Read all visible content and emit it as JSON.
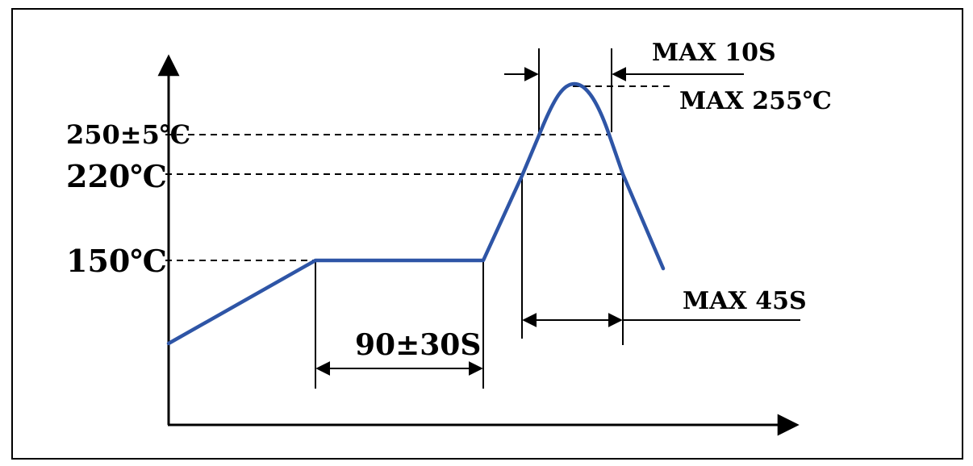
{
  "diagram": {
    "y_labels": {
      "t250": "250±5℃",
      "t220": "220℃",
      "t150": "150℃"
    },
    "annotations": {
      "soak_time": "90±30S",
      "peak_time": "MAX 10S",
      "peak_temp": "MAX 255℃",
      "reflow_time": "MAX 45S"
    },
    "colors": {
      "curve": "#2e55a6",
      "lines": "#000000",
      "background": "#ffffff"
    }
  }
}
